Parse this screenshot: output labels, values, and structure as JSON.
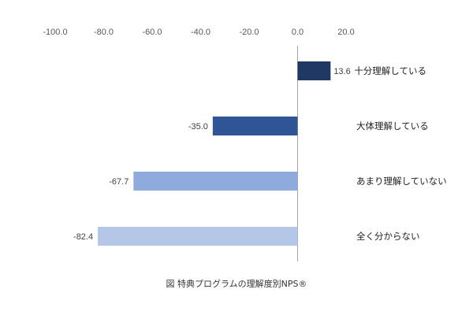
{
  "caption": "図 特典プログラムの理解度別NPS®",
  "colors": {
    "bar_1": "#1f3864",
    "bar_2": "#2f5597",
    "bar_3": "#8faadc",
    "bar_4": "#b4c7e7",
    "axis": "#a6a6a6"
  },
  "chart_data": {
    "type": "bar",
    "orientation": "horizontal",
    "title": "",
    "xlabel": "",
    "ylabel": "",
    "xlim": [
      -100,
      20
    ],
    "x_ticks": [
      -100,
      -80,
      -60,
      -40,
      -20,
      0,
      20
    ],
    "x_tick_labels": [
      "-100.0",
      "-80.0",
      "-60.0",
      "-40.0",
      "-20.0",
      "0.0",
      "20.0"
    ],
    "x_axis_position": "top",
    "grid": false,
    "legend": false,
    "categories": [
      "十分理解している",
      "大体理解している",
      "あまり理解していない",
      "全く分からない"
    ],
    "values": [
      13.6,
      -35.0,
      -67.7,
      -82.4
    ],
    "value_labels": [
      "13.6",
      "-35.0",
      "-67.7",
      "-82.4"
    ]
  }
}
